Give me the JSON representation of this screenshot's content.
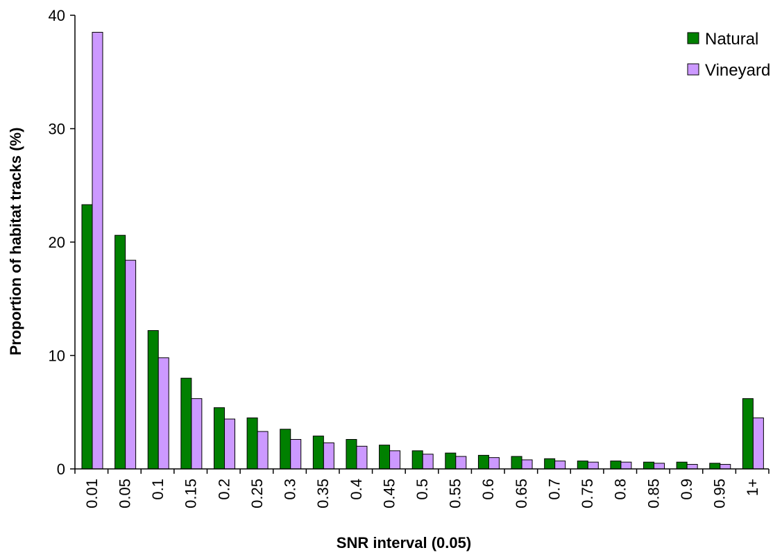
{
  "chart_data": {
    "type": "bar",
    "title": "",
    "xlabel": "SNR interval (0.05)",
    "ylabel": "Proportion of habitat tracks (%)",
    "ylim": [
      0,
      40
    ],
    "yticks": [
      0,
      10,
      20,
      30,
      40
    ],
    "grid": false,
    "legend_position": "top-right",
    "categories": [
      "0.01",
      "0.05",
      "0.1",
      "0.15",
      "0.2",
      "0.25",
      "0.3",
      "0.35",
      "0.4",
      "0.45",
      "0.5",
      "0.55",
      "0.6",
      "0.65",
      "0.7",
      "0.75",
      "0.8",
      "0.85",
      "0.9",
      "0.95",
      "1+"
    ],
    "series": [
      {
        "name": "Natural",
        "color": "#008000",
        "values": [
          23.3,
          20.6,
          12.2,
          8.0,
          5.4,
          4.5,
          3.5,
          2.9,
          2.6,
          2.1,
          1.6,
          1.4,
          1.2,
          1.1,
          0.9,
          0.7,
          0.7,
          0.6,
          0.6,
          0.5,
          6.2
        ]
      },
      {
        "name": "Vineyard",
        "color": "#CC99FF",
        "values": [
          38.5,
          18.4,
          9.8,
          6.2,
          4.4,
          3.3,
          2.6,
          2.3,
          2.0,
          1.6,
          1.3,
          1.1,
          1.0,
          0.8,
          0.7,
          0.6,
          0.6,
          0.5,
          0.4,
          0.4,
          4.5
        ]
      }
    ]
  }
}
